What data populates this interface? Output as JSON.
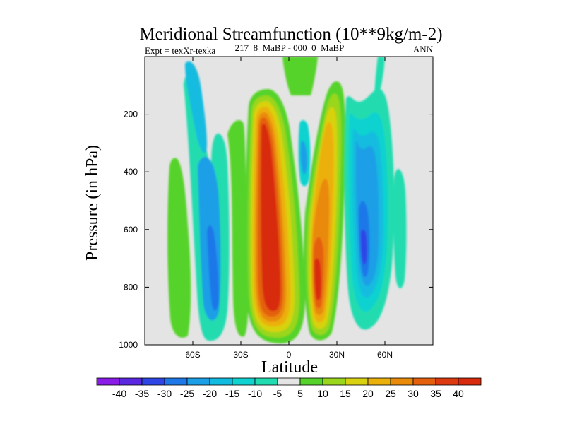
{
  "chart_data": {
    "type": "contour",
    "title": "Meridional Streamfunction (10**9kg/m-2)",
    "left_string": "Expt = texXr-texka",
    "center_string": "217_8_MaBP - 000_0_MaBP",
    "right_string": "ANN",
    "xlabel": "Latitude",
    "ylabel": "Pressure (in hPa)",
    "xlim": [
      -90,
      90
    ],
    "ylim": [
      1000,
      0
    ],
    "x_ticks": [
      {
        "value": -60,
        "label": "60S"
      },
      {
        "value": -30,
        "label": "30S"
      },
      {
        "value": 0,
        "label": "0"
      },
      {
        "value": 30,
        "label": "30N"
      },
      {
        "value": 60,
        "label": "60N"
      }
    ],
    "y_ticks": [
      {
        "value": 200,
        "label": "200"
      },
      {
        "value": 400,
        "label": "400"
      },
      {
        "value": 600,
        "label": "600"
      },
      {
        "value": 800,
        "label": "800"
      },
      {
        "value": 1000,
        "label": "1000"
      }
    ],
    "contour_levels": [
      -40,
      -35,
      -30,
      -25,
      -20,
      -15,
      -10,
      -5,
      5,
      10,
      15,
      20,
      25,
      30,
      35,
      40
    ],
    "colorbar_labels": [
      "-40",
      "-35",
      "-30",
      "-25",
      "-20",
      "-15",
      "-10",
      "-5",
      "5",
      "10",
      "15",
      "20",
      "25",
      "30",
      "35",
      "40"
    ],
    "colorbar_colors": [
      "#8a1ce8",
      "#5a28e0",
      "#2f45e6",
      "#1f78e8",
      "#1c9fe6",
      "#12bbe0",
      "#10d2d0",
      "#20dcb0",
      "#e4e4e4",
      "#56d32a",
      "#9ad61c",
      "#d8d210",
      "#ecb00c",
      "#e98a0a",
      "#e4600c",
      "#dd3a10",
      "#d82a0c"
    ],
    "background_color": "#e4e4e4",
    "features": [
      {
        "name": "SH subtropical negative cell",
        "lat": [
          -50,
          -40
        ],
        "pressure": [
          300,
          960
        ],
        "min": -25
      },
      {
        "name": "Tropical positive cell",
        "lat": [
          -17,
          -3
        ],
        "pressure": [
          170,
          960
        ],
        "max": 40
      },
      {
        "name": "NH subtropical positive cell",
        "lat": [
          15,
          28
        ],
        "pressure": [
          260,
          950
        ],
        "max": 40
      },
      {
        "name": "NH midlatitude negative cell",
        "lat": [
          35,
          47
        ],
        "pressure": [
          200,
          890
        ],
        "min": -30
      },
      {
        "name": "SH high-latitude positive band",
        "lat": [
          -80,
          -72
        ],
        "pressure": [
          300,
          980
        ],
        "max": 10
      },
      {
        "name": "NH high-latitude negative band",
        "lat": [
          60,
          67
        ],
        "pressure": [
          400,
          780
        ],
        "min": -10
      }
    ]
  }
}
